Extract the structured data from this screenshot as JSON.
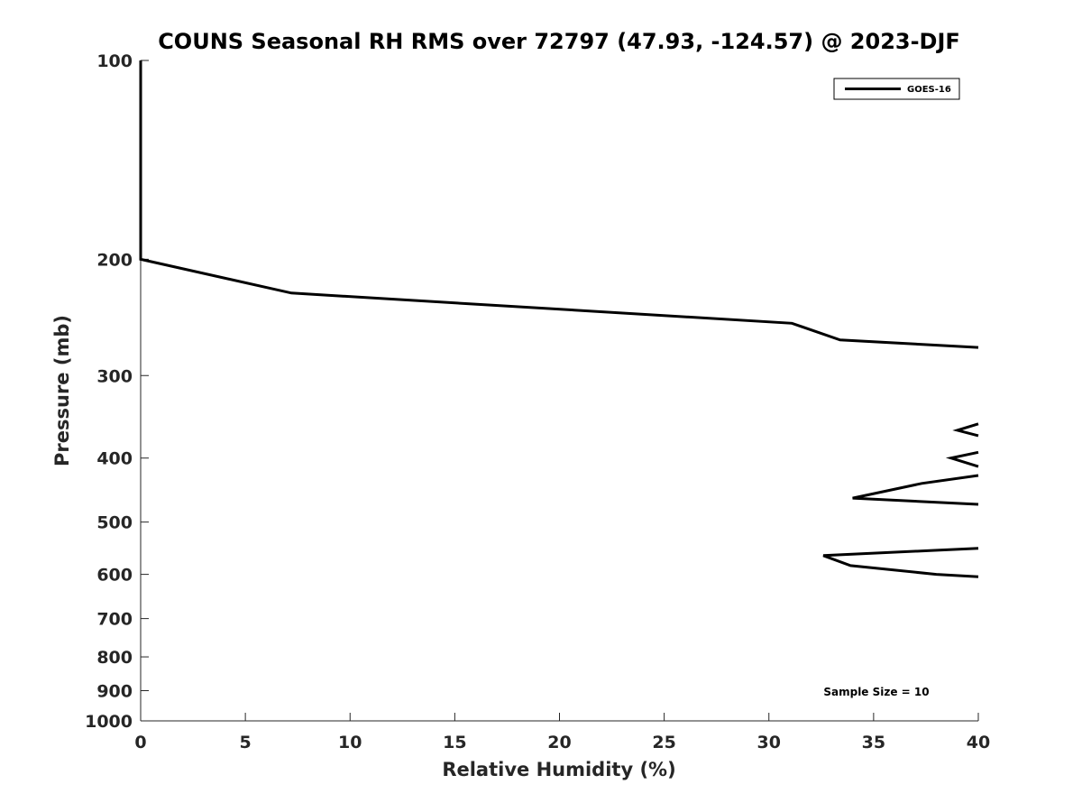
{
  "chart_data": {
    "type": "line",
    "title": "COUNS Seasonal RH RMS over 72797 (47.93, -124.57) @ 2023-DJF",
    "xlabel": "Relative Humidity (%)",
    "ylabel": "Pressure (mb)",
    "xlim": [
      0,
      40
    ],
    "ylim": [
      1000,
      100
    ],
    "y_scale": "log",
    "y_reversed": true,
    "grid": false,
    "legend_position": "top-right",
    "x_ticks": [
      0,
      5,
      10,
      15,
      20,
      25,
      30,
      35,
      40
    ],
    "y_ticks": [
      100,
      200,
      300,
      400,
      500,
      600,
      700,
      800,
      900,
      1000
    ],
    "series": [
      {
        "name": "GOES-16",
        "color": "#000000",
        "segments": [
          {
            "x": [
              0,
              0,
              0,
              7.2,
              31.1,
              33.4,
              40
            ],
            "y": [
              100,
              150,
              200,
              225,
              250,
              265,
              272
            ]
          },
          {
            "x": [
              40,
              39.0,
              40
            ],
            "y": [
              355,
              363,
              370
            ]
          },
          {
            "x": [
              40,
              38.7,
              40
            ],
            "y": [
              392,
              400,
              412
            ]
          },
          {
            "x": [
              40,
              37.3,
              34.0,
              40
            ],
            "y": [
              425,
              437,
              460,
              470
            ]
          },
          {
            "x": [
              40,
              37.8,
              32.6,
              33.9,
              38.0,
              40
            ],
            "y": [
              548,
              552,
              562,
              582,
              600,
              605
            ]
          }
        ]
      }
    ],
    "annotations": [
      "Sample Size = 10"
    ]
  }
}
